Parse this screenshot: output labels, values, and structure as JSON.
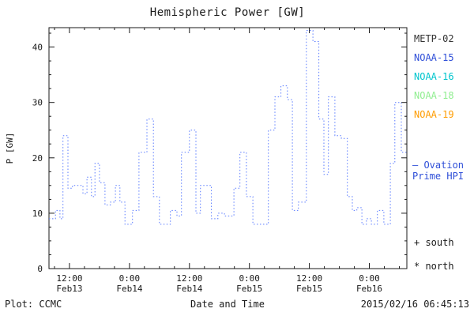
{
  "chart_data": {
    "type": "line",
    "subtype": "step",
    "line_style": "dotted",
    "title": "Hemispheric Power [GW]",
    "xlabel": "Date and Time",
    "ylabel": "P [GW]",
    "ylim": [
      0,
      43.5
    ],
    "yticks": [
      0,
      10,
      20,
      30,
      40
    ],
    "y_minor_step": 2.5,
    "x_unit": "hours_from_plot_start",
    "xlim": [
      0,
      71.6
    ],
    "x_minor_step": 3,
    "xticks": [
      {
        "t": 4.1,
        "time": "12:00",
        "date": "Feb13"
      },
      {
        "t": 16.1,
        "time": "0:00",
        "date": "Feb14"
      },
      {
        "t": 28.1,
        "time": "12:00",
        "date": "Feb14"
      },
      {
        "t": 40.1,
        "time": "0:00",
        "date": "Feb15"
      },
      {
        "t": 52.1,
        "time": "12:00",
        "date": "Feb15"
      },
      {
        "t": 64.1,
        "time": "0:00",
        "date": "Feb16"
      }
    ],
    "line_color": "#5b7cff",
    "axis_color": "#1a1a1a",
    "series": [
      {
        "name": "Ovation Prime HPI",
        "t_hours": [
          0,
          1.3,
          2.2,
          2.8,
          3.8,
          4.7,
          6.8,
          7.6,
          8.5,
          9.2,
          10.1,
          11.2,
          12.3,
          13.3,
          14.2,
          15.2,
          16.7,
          18.0,
          19.6,
          20.9,
          22.1,
          24.3,
          25.6,
          26.5,
          28.1,
          29.4,
          30.3,
          31.6,
          32.5,
          33.8,
          35.1,
          37.0,
          38.2,
          39.5,
          40.8,
          43.9,
          45.2,
          46.4,
          47.7,
          48.7,
          49.9,
          51.5,
          52.8,
          54.0,
          55.0,
          55.9,
          57.2,
          58.5,
          59.7,
          60.7,
          61.6,
          62.6,
          63.5,
          64.5,
          65.7,
          67.0,
          68.3,
          69.2,
          70.5
        ],
        "values_gw": [
          9,
          10.5,
          9,
          24,
          14.5,
          15,
          13.5,
          16.5,
          13,
          19,
          15.5,
          11.5,
          12,
          15,
          12,
          8,
          10.5,
          21,
          27,
          13,
          8,
          10.5,
          9.5,
          21,
          25,
          10,
          15,
          15,
          9,
          10,
          9.5,
          14.5,
          21,
          13,
          8,
          25,
          31,
          33,
          30.5,
          10.5,
          12,
          43,
          41,
          27,
          17,
          31,
          24,
          23.5,
          13,
          10.5,
          11,
          8,
          9,
          8,
          10.5,
          8,
          19,
          30,
          21
        ]
      }
    ]
  },
  "legend": {
    "satellites": [
      {
        "label": "METP-02",
        "color": "#333333"
      },
      {
        "label": "NOAA-15",
        "color": "#2f4fd8"
      },
      {
        "label": "NOAA-16",
        "color": "#00c5cd"
      },
      {
        "label": "NOAA-18",
        "color": "#90ee90"
      },
      {
        "label": "NOAA-19",
        "color": "#ff9c00"
      }
    ],
    "model_line1": "— Ovation",
    "model_line2": "Prime HPI",
    "model_color": "#2f4fd8",
    "south_marker": "+ south",
    "north_marker": "* north"
  },
  "footer": {
    "plot_credit": "Plot: CCMC",
    "timestamp": "2015/02/16 06:45:13"
  }
}
